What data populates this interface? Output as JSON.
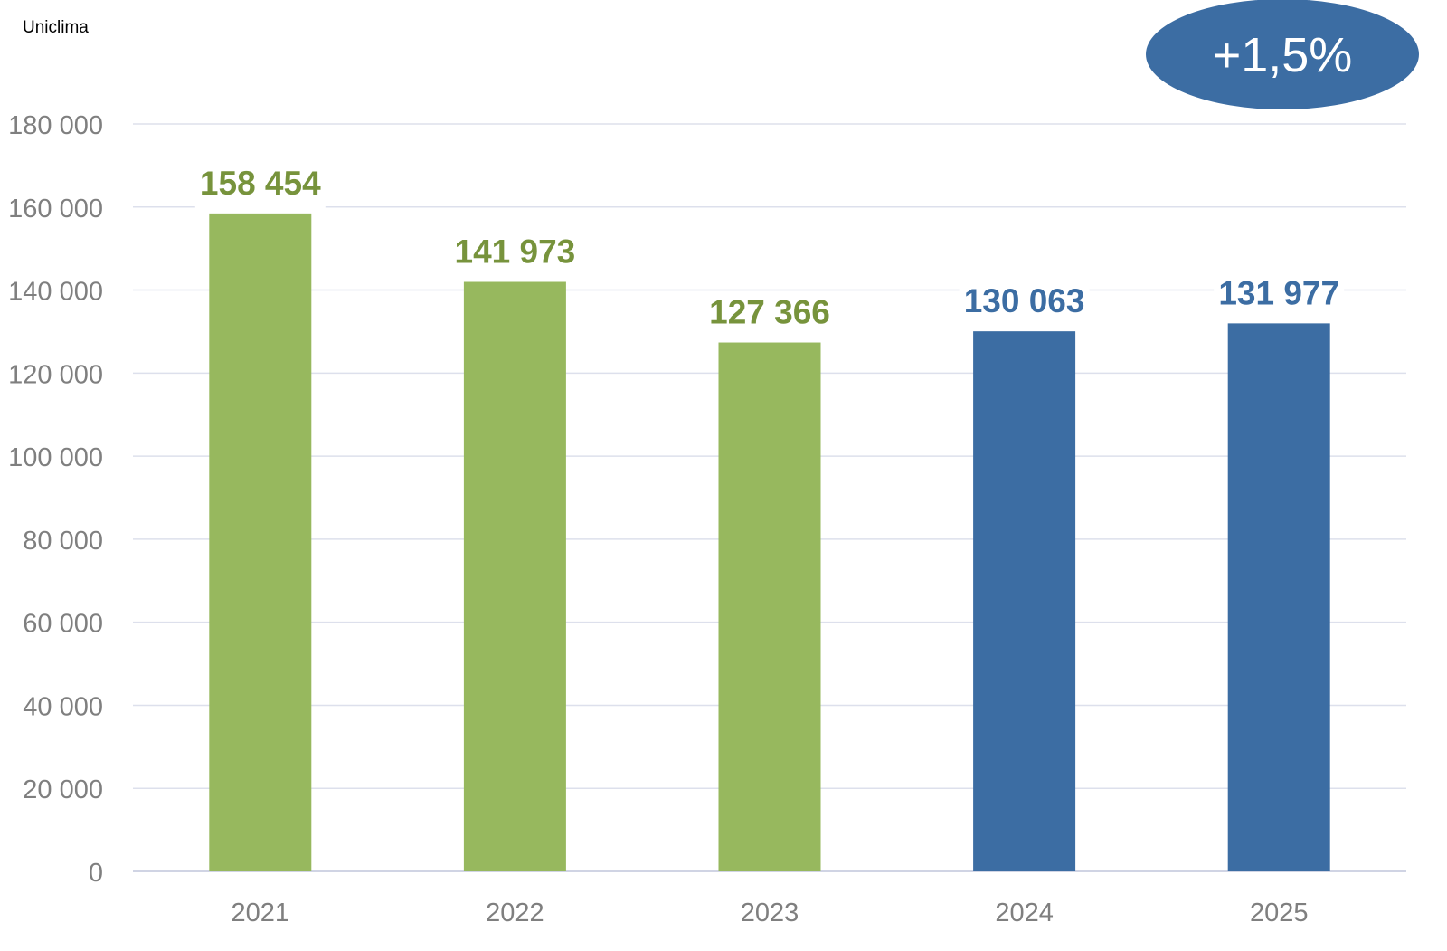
{
  "source_label": "Uniclima",
  "badge": {
    "text": "+1,5%",
    "color": "#3C6DA3"
  },
  "chart_data": {
    "type": "bar",
    "title": "",
    "xlabel": "",
    "ylabel": "",
    "categories": [
      "2021",
      "2022",
      "2023",
      "2024",
      "2025"
    ],
    "values": [
      158454,
      141973,
      127366,
      130063,
      131977
    ],
    "value_labels": [
      "158 454",
      "141 973",
      "127 366",
      "130 063",
      "131 977"
    ],
    "bar_colors": [
      "#97B85E",
      "#97B85E",
      "#97B85E",
      "#3C6DA3",
      "#3C6DA3"
    ],
    "label_colors": [
      "#77933C",
      "#77933C",
      "#77933C",
      "#3C6DA3",
      "#3C6DA3"
    ],
    "ylim": [
      0,
      180000
    ],
    "yticks": [
      0,
      20000,
      40000,
      60000,
      80000,
      100000,
      120000,
      140000,
      160000,
      180000
    ],
    "ytick_labels": [
      "0",
      "20 000",
      "40 000",
      "60 000",
      "80 000",
      "100 000",
      "120 000",
      "140 000",
      "160 000",
      "180 000"
    ],
    "grid": true,
    "legend": "none"
  }
}
